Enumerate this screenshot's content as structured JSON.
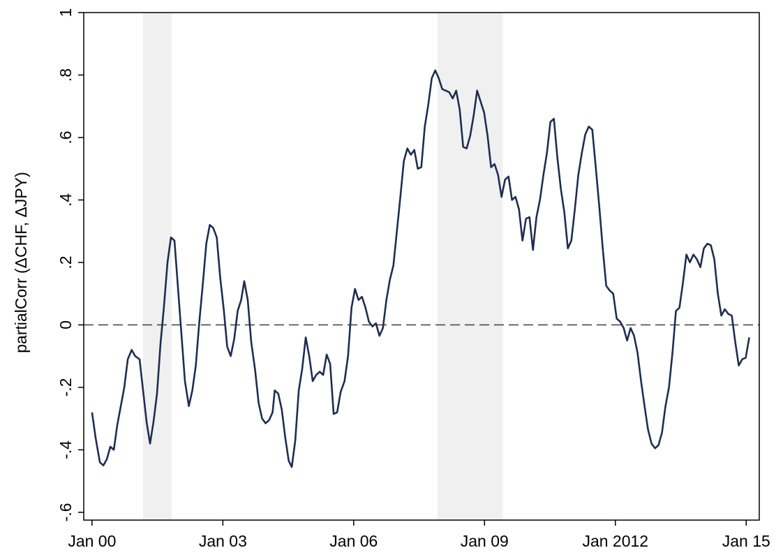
{
  "chart_data": {
    "type": "line",
    "y_label": "partialCorr (ΔCHF, ΔJPY)",
    "xlim": [
      1999.81,
      2015.3
    ],
    "ylim": [
      -0.625,
      1
    ],
    "xticks": [
      {
        "value": 2000,
        "label": "Jan 00"
      },
      {
        "value": 2003,
        "label": "Jan 03"
      },
      {
        "value": 2006,
        "label": "Jan 06"
      },
      {
        "value": 2009,
        "label": "Jan 09"
      },
      {
        "value": 2012,
        "label": "Jan 2012"
      },
      {
        "value": 2015,
        "label": "Jan 15"
      }
    ],
    "yticks": [
      {
        "value": -0.6,
        "label": "-.6"
      },
      {
        "value": -0.4,
        "label": "-.4"
      },
      {
        "value": -0.2,
        "label": "-.2"
      },
      0,
      {
        "value": 0.2,
        "label": ".2"
      },
      {
        "value": 0.4,
        "label": ".4"
      },
      {
        "value": 0.6,
        "label": ".6"
      },
      {
        "value": 0.8,
        "label": ".8"
      },
      1
    ],
    "reference_line": 0,
    "shaded_periods": [
      [
        2001.17,
        2001.83
      ],
      [
        2007.92,
        2009.42
      ]
    ],
    "shade_color": "#f0f0f0",
    "x": [
      2000.0,
      2000.08,
      2000.18,
      2000.26,
      2000.34,
      2000.42,
      2000.5,
      2000.58,
      2000.66,
      2000.74,
      2000.82,
      2000.91,
      2000.99,
      2001.09,
      2001.17,
      2001.25,
      2001.33,
      2001.41,
      2001.49,
      2001.57,
      2001.65,
      2001.73,
      2001.81,
      2001.89,
      2001.97,
      2002.05,
      2002.13,
      2002.22,
      2002.3,
      2002.38,
      2002.46,
      2002.54,
      2002.62,
      2002.7,
      2002.78,
      2002.86,
      2002.94,
      2003.02,
      2003.1,
      2003.18,
      2003.26,
      2003.34,
      2003.42,
      2003.49,
      2003.57,
      2003.65,
      2003.74,
      2003.82,
      2003.9,
      2003.98,
      2004.06,
      2004.14,
      2004.19,
      2004.27,
      2004.35,
      2004.43,
      2004.51,
      2004.58,
      2004.66,
      2004.74,
      2004.82,
      2004.9,
      2004.98,
      2005.06,
      2005.14,
      2005.22,
      2005.3,
      2005.38,
      2005.46,
      2005.54,
      2005.62,
      2005.7,
      2005.79,
      2005.87,
      2005.95,
      2006.03,
      2006.11,
      2006.19,
      2006.27,
      2006.35,
      2006.43,
      2006.51,
      2006.59,
      2006.67,
      2006.75,
      2006.83,
      2006.91,
      2006.99,
      2007.07,
      2007.15,
      2007.23,
      2007.31,
      2007.39,
      2007.47,
      2007.55,
      2007.63,
      2007.71,
      2007.79,
      2007.87,
      2007.95,
      2008.03,
      2008.11,
      2008.19,
      2008.27,
      2008.35,
      2008.43,
      2008.51,
      2008.59,
      2008.67,
      2008.75,
      2008.83,
      2008.91,
      2008.99,
      2009.07,
      2009.15,
      2009.23,
      2009.31,
      2009.39,
      2009.47,
      2009.55,
      2009.63,
      2009.71,
      2009.79,
      2009.87,
      2009.95,
      2010.03,
      2010.11,
      2010.19,
      2010.27,
      2010.35,
      2010.43,
      2010.51,
      2010.59,
      2010.67,
      2010.75,
      2010.83,
      2010.91,
      2010.99,
      2011.07,
      2011.15,
      2011.23,
      2011.31,
      2011.39,
      2011.47,
      2011.55,
      2011.63,
      2011.71,
      2011.79,
      2011.87,
      2011.95,
      2012.03,
      2012.11,
      2012.19,
      2012.27,
      2012.35,
      2012.43,
      2012.51,
      2012.59,
      2012.67,
      2012.75,
      2012.83,
      2012.91,
      2012.99,
      2013.07,
      2013.15,
      2013.23,
      2013.31,
      2013.39,
      2013.47,
      2013.55,
      2013.63,
      2013.71,
      2013.79,
      2013.87,
      2013.95,
      2014.03,
      2014.11,
      2014.19,
      2014.27,
      2014.35,
      2014.43,
      2014.51,
      2014.59,
      2014.67,
      2014.75,
      2014.83,
      2014.91,
      2014.99,
      2015.07
    ],
    "series": [
      {
        "color": "#1f2d50",
        "values": [
          -0.28,
          -0.36,
          -0.44,
          -0.45,
          -0.43,
          -0.39,
          -0.4,
          -0.32,
          -0.26,
          -0.2,
          -0.11,
          -0.08,
          -0.1,
          -0.11,
          -0.21,
          -0.31,
          -0.38,
          -0.31,
          -0.22,
          -0.06,
          0.06,
          0.2,
          0.28,
          0.27,
          0.12,
          -0.03,
          -0.18,
          -0.26,
          -0.21,
          -0.13,
          0.01,
          0.13,
          0.26,
          0.32,
          0.31,
          0.28,
          0.15,
          0.05,
          -0.07,
          -0.1,
          -0.045,
          0.045,
          0.08,
          0.14,
          0.08,
          -0.055,
          -0.145,
          -0.25,
          -0.3,
          -0.315,
          -0.305,
          -0.28,
          -0.21,
          -0.22,
          -0.27,
          -0.36,
          -0.435,
          -0.455,
          -0.37,
          -0.21,
          -0.14,
          -0.04,
          -0.1,
          -0.18,
          -0.16,
          -0.15,
          -0.16,
          -0.095,
          -0.125,
          -0.285,
          -0.28,
          -0.215,
          -0.18,
          -0.1,
          0.055,
          0.115,
          0.08,
          0.09,
          0.055,
          0.01,
          -0.005,
          0.005,
          -0.035,
          -0.01,
          0.08,
          0.145,
          0.19,
          0.3,
          0.41,
          0.525,
          0.565,
          0.545,
          0.56,
          0.5,
          0.505,
          0.635,
          0.705,
          0.79,
          0.815,
          0.79,
          0.755,
          0.75,
          0.745,
          0.725,
          0.75,
          0.69,
          0.57,
          0.565,
          0.605,
          0.67,
          0.75,
          0.715,
          0.68,
          0.605,
          0.505,
          0.515,
          0.48,
          0.41,
          0.465,
          0.475,
          0.4,
          0.41,
          0.37,
          0.27,
          0.34,
          0.345,
          0.24,
          0.345,
          0.4,
          0.48,
          0.55,
          0.65,
          0.66,
          0.535,
          0.435,
          0.36,
          0.245,
          0.27,
          0.37,
          0.48,
          0.55,
          0.61,
          0.635,
          0.625,
          0.505,
          0.38,
          0.245,
          0.125,
          0.11,
          0.1,
          0.02,
          0.01,
          -0.01,
          -0.05,
          -0.01,
          -0.035,
          -0.09,
          -0.18,
          -0.26,
          -0.335,
          -0.38,
          -0.395,
          -0.385,
          -0.345,
          -0.26,
          -0.2,
          -0.09,
          0.045,
          0.055,
          0.135,
          0.225,
          0.2,
          0.225,
          0.21,
          0.185,
          0.245,
          0.26,
          0.255,
          0.21,
          0.1,
          0.03,
          0.05,
          0.035,
          0.03,
          -0.055,
          -0.13,
          -0.11,
          -0.105,
          -0.04
        ]
      }
    ]
  }
}
